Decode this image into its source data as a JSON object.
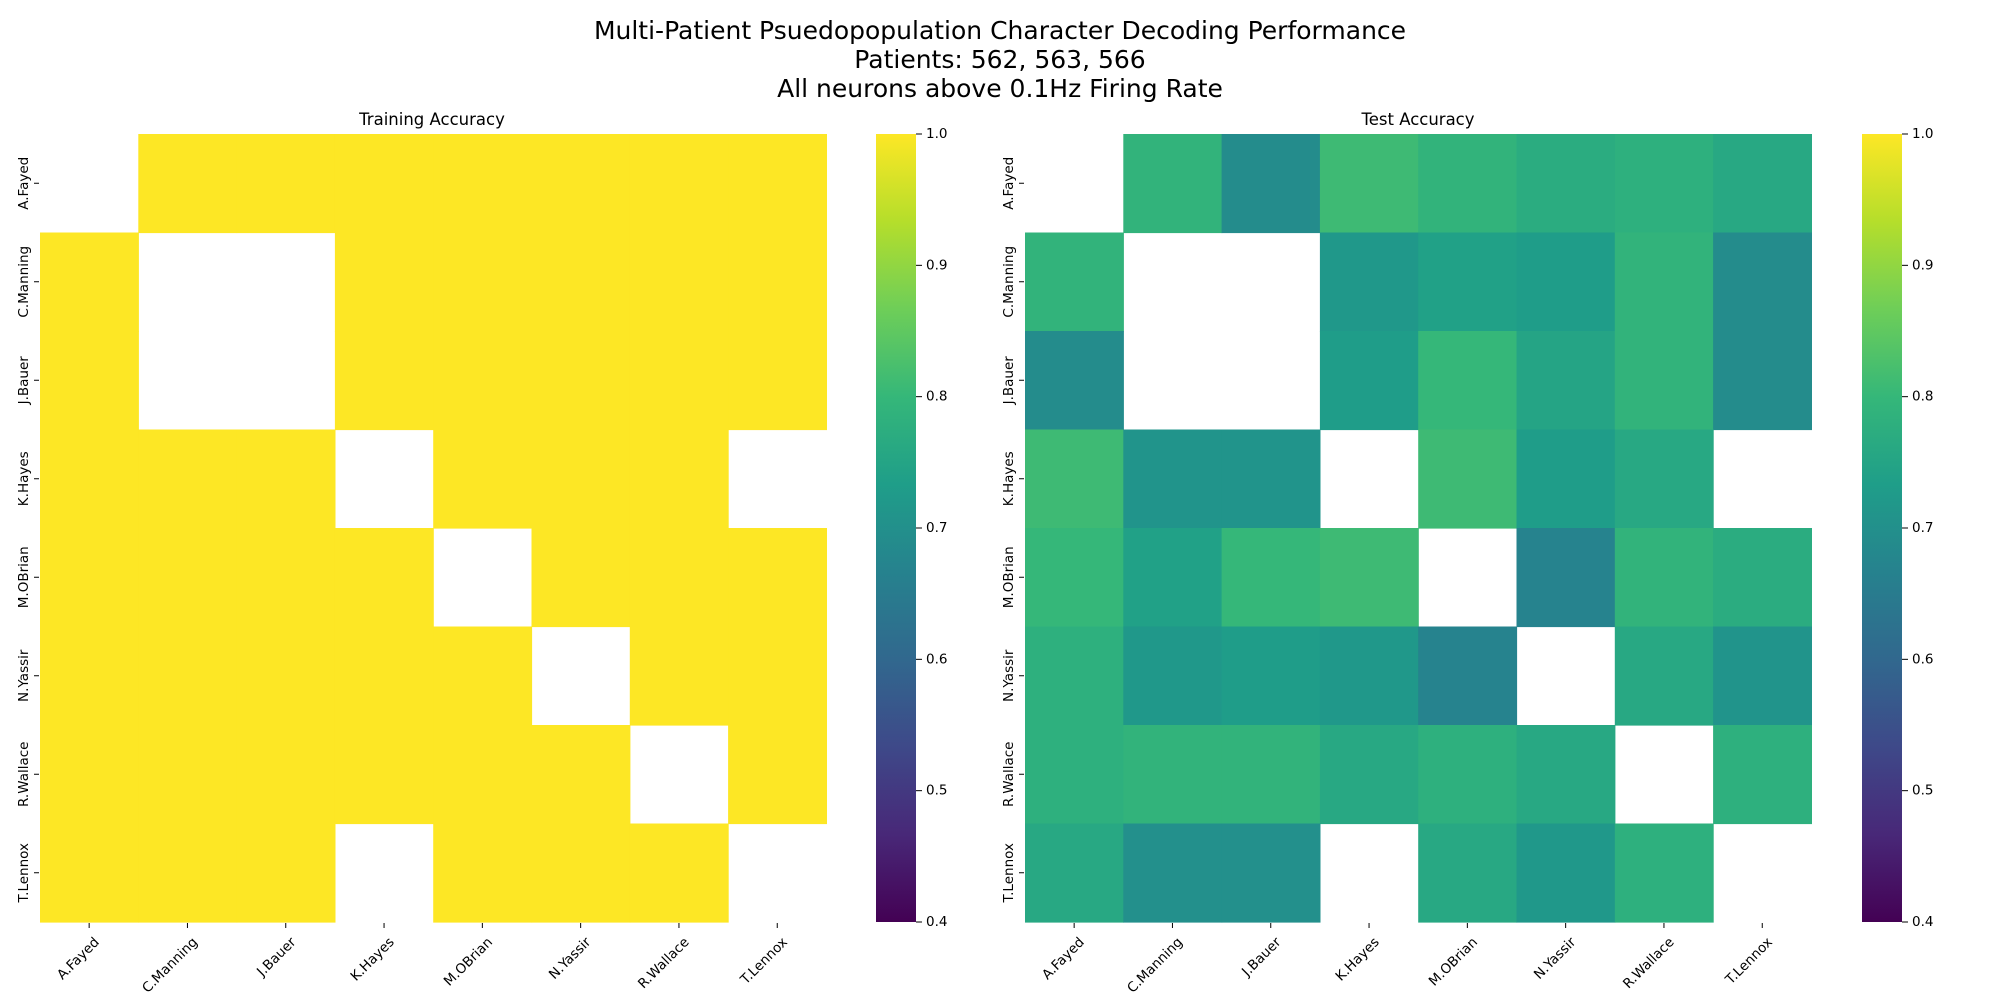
{
  "title_lines": [
    "Multi-Patient Psuedopopulation Character Decoding Performance",
    "Patients: 562, 563, 566",
    "All neurons above 0.1Hz Firing Rate"
  ],
  "colormap": {
    "name": "viridis",
    "stops": [
      "#440154",
      "#482878",
      "#3e4989",
      "#31688e",
      "#26828e",
      "#1f9e89",
      "#35b779",
      "#6ece58",
      "#b5de2b",
      "#fde725"
    ]
  },
  "chart_data": [
    {
      "type": "heatmap",
      "title": "Training Accuracy",
      "categories": [
        "A.Fayed",
        "C.Manning",
        "J.Bauer",
        "K.Hayes",
        "M.OBrian",
        "N.Yassir",
        "R.Wallace",
        "T.Lennox"
      ],
      "zlim": [
        0.4,
        1.0
      ],
      "colorbar_ticks": [
        "0.4",
        "0.5",
        "0.6",
        "0.7",
        "0.8",
        "0.9",
        "1.0"
      ],
      "values": [
        [
          null,
          1.0,
          1.0,
          1.0,
          1.0,
          1.0,
          1.0,
          1.0
        ],
        [
          1.0,
          null,
          null,
          1.0,
          1.0,
          1.0,
          1.0,
          1.0
        ],
        [
          1.0,
          null,
          null,
          1.0,
          1.0,
          1.0,
          1.0,
          1.0
        ],
        [
          1.0,
          1.0,
          1.0,
          null,
          1.0,
          1.0,
          1.0,
          null
        ],
        [
          1.0,
          1.0,
          1.0,
          1.0,
          null,
          1.0,
          1.0,
          1.0
        ],
        [
          1.0,
          1.0,
          1.0,
          1.0,
          1.0,
          null,
          1.0,
          1.0
        ],
        [
          1.0,
          1.0,
          1.0,
          1.0,
          1.0,
          1.0,
          null,
          1.0
        ],
        [
          1.0,
          1.0,
          1.0,
          null,
          1.0,
          1.0,
          1.0,
          null
        ]
      ]
    },
    {
      "type": "heatmap",
      "title": "Test Accuracy",
      "categories": [
        "A.Fayed",
        "C.Manning",
        "J.Bauer",
        "K.Hayes",
        "M.OBrian",
        "N.Yassir",
        "R.Wallace",
        "T.Lennox"
      ],
      "zlim": [
        0.4,
        1.0
      ],
      "colorbar_ticks": [
        "0.4",
        "0.5",
        "0.6",
        "0.7",
        "0.8",
        "0.9",
        "1.0"
      ],
      "values": [
        [
          null,
          0.79,
          0.69,
          0.81,
          0.79,
          0.77,
          0.78,
          0.76
        ],
        [
          0.79,
          null,
          null,
          0.72,
          0.74,
          0.73,
          0.79,
          0.69
        ],
        [
          0.69,
          null,
          null,
          0.73,
          0.8,
          0.75,
          0.79,
          0.69
        ],
        [
          0.81,
          0.71,
          0.71,
          null,
          0.81,
          0.73,
          0.76,
          null
        ],
        [
          0.8,
          0.74,
          0.8,
          0.81,
          null,
          0.67,
          0.79,
          0.77
        ],
        [
          0.78,
          0.72,
          0.73,
          0.72,
          0.67,
          null,
          0.76,
          0.71
        ],
        [
          0.78,
          0.79,
          0.79,
          0.76,
          0.78,
          0.76,
          null,
          0.78
        ],
        [
          0.76,
          0.7,
          0.7,
          null,
          0.76,
          0.72,
          0.78,
          null
        ]
      ]
    }
  ]
}
